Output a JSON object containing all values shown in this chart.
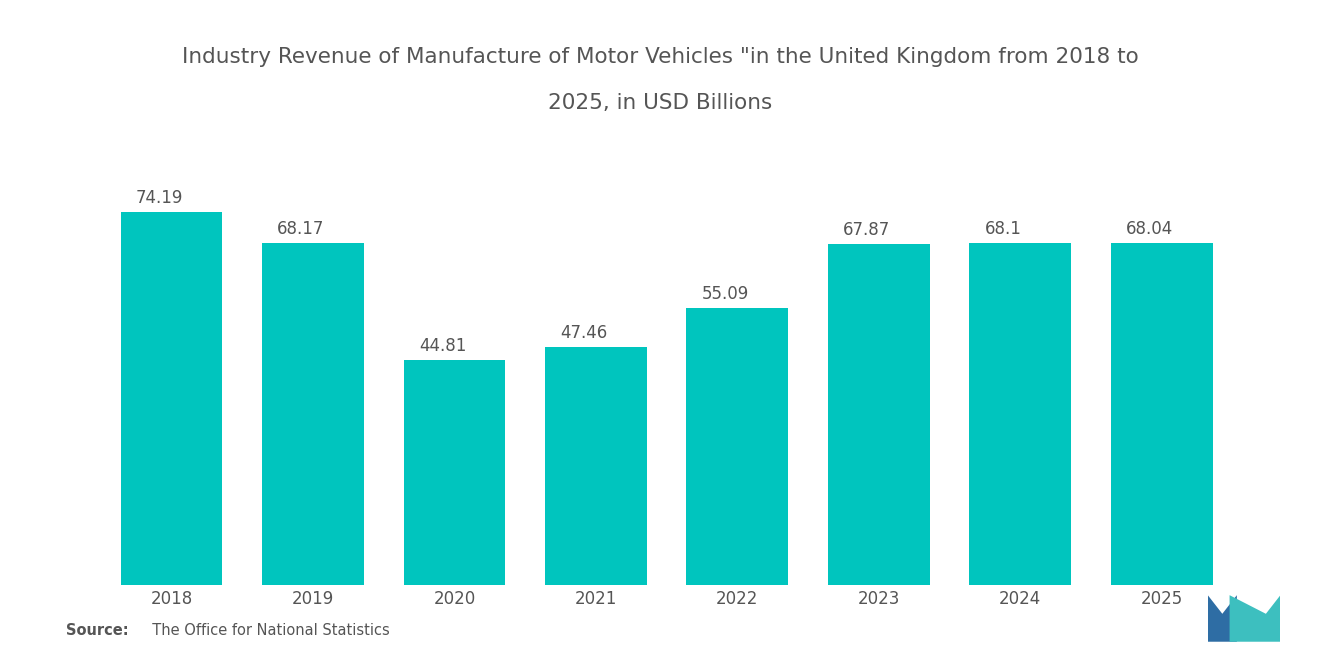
{
  "title_line1": "Industry Revenue of Manufacture of Motor Vehicles \"in the United Kingdom from 2018 to",
  "title_line2": "2025, in USD Billions",
  "categories": [
    "2018",
    "2019",
    "2020",
    "2021",
    "2022",
    "2023",
    "2024",
    "2025"
  ],
  "values": [
    74.19,
    68.17,
    44.81,
    47.46,
    55.09,
    67.87,
    68.1,
    68.04
  ],
  "bar_color": "#00C5BE",
  "background_color": "#ffffff",
  "title_fontsize": 15.5,
  "label_fontsize": 12,
  "tick_fontsize": 12,
  "source_bold": "Source:",
  "source_normal": "  The Office for National Statistics",
  "ylim": [
    0,
    90
  ],
  "bar_width": 0.72,
  "text_color": "#555555"
}
